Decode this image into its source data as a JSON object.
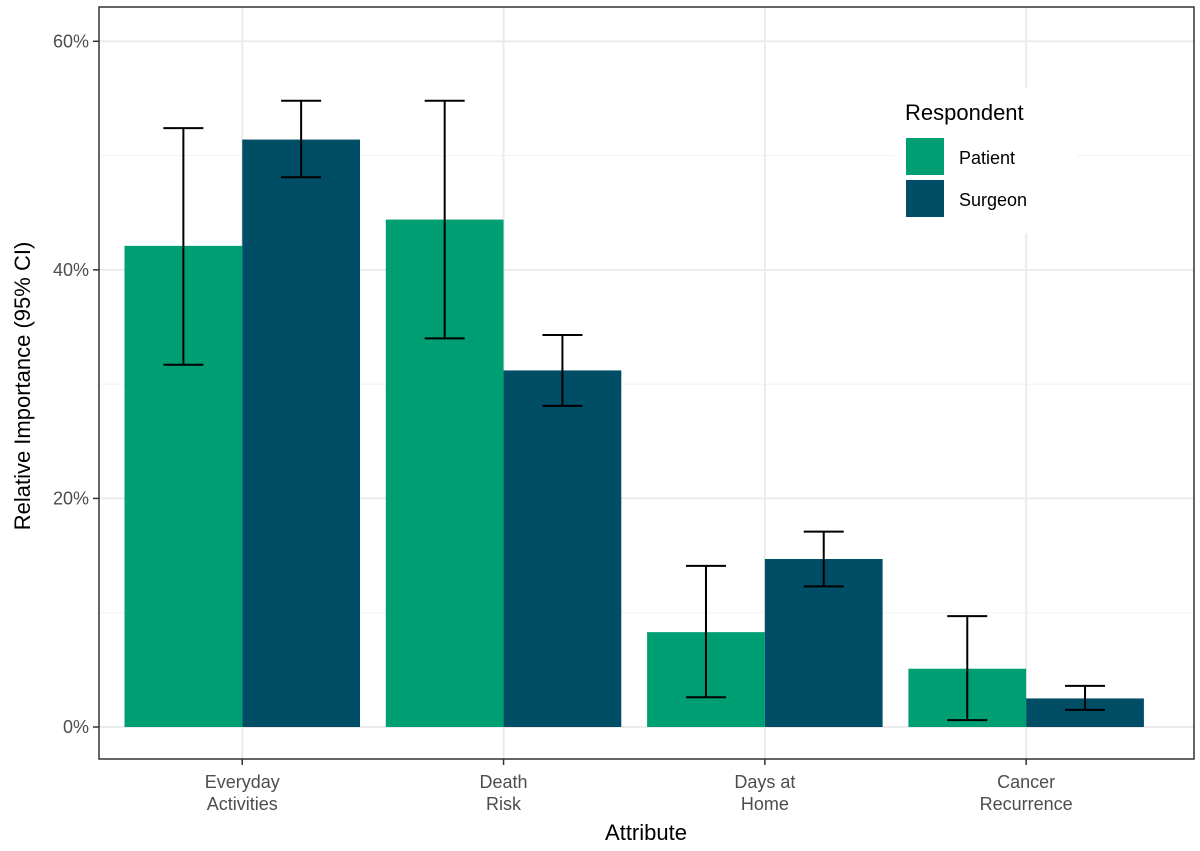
{
  "chart_data": {
    "type": "bar",
    "title": "",
    "xlabel": "Attribute",
    "ylabel": "Relative Importance (95% CI)",
    "categories": [
      [
        "Everyday",
        "Activities"
      ],
      [
        "Death",
        "Risk"
      ],
      [
        "Days at",
        "Home"
      ],
      [
        "Cancer",
        "Recurrence"
      ]
    ],
    "ylim": [
      -0.028,
      0.63
    ],
    "yticks": [
      {
        "value": 0.0,
        "label": "0%"
      },
      {
        "value": 0.2,
        "label": "20%"
      },
      {
        "value": 0.4,
        "label": "40%"
      },
      {
        "value": 0.6,
        "label": "60%"
      }
    ],
    "grid": true,
    "legend": {
      "title": "Respondent",
      "position": "top-right"
    },
    "series": [
      {
        "name": "Patient",
        "color": "#009e73",
        "values": [
          0.421,
          0.444,
          0.083,
          0.051
        ],
        "ci_low": [
          0.317,
          0.34,
          0.026,
          0.006
        ],
        "ci_high": [
          0.524,
          0.548,
          0.141,
          0.097
        ]
      },
      {
        "name": "Surgeon",
        "color": "#004d66",
        "values": [
          0.514,
          0.312,
          0.147,
          0.025
        ],
        "ci_low": [
          0.481,
          0.281,
          0.123,
          0.015
        ],
        "ci_high": [
          0.548,
          0.343,
          0.171,
          0.036
        ]
      }
    ]
  }
}
